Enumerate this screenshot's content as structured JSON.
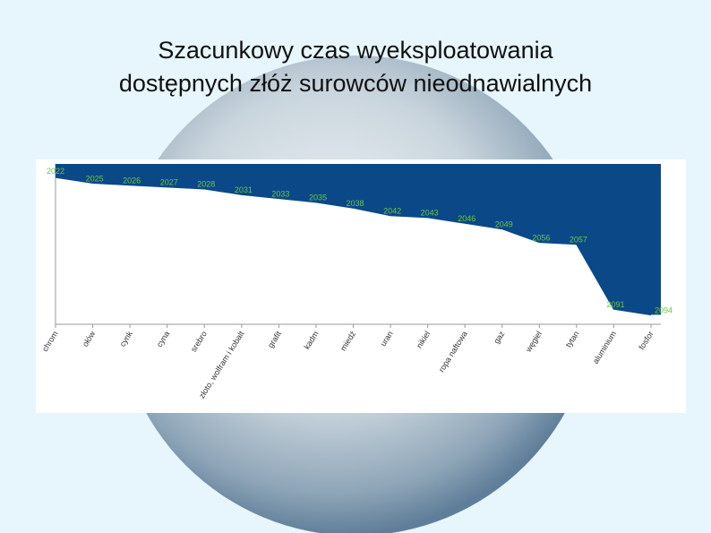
{
  "chart_data": {
    "type": "area",
    "title": [
      "Szacunkowy czas wyeksploatowania",
      "dostępnych złóż surowców nieodnawialnych"
    ],
    "categories": [
      "chrom",
      "ołów",
      "cynk",
      "cyna",
      "srebro",
      "złoto, wolfram i kobalt",
      "grafit",
      "kadm",
      "miedź",
      "uran",
      "nikiel",
      "ropa naftowa",
      "gaz",
      "węgiel",
      "tytan",
      "aluminium",
      "fosfor"
    ],
    "values": [
      2022,
      2025,
      2026,
      2027,
      2028,
      2031,
      2033,
      2035,
      2038,
      2042,
      2043,
      2046,
      2049,
      2056,
      2057,
      2091,
      2094
    ],
    "color": "#0a4888",
    "label_color": "#6cc644",
    "ylim": [
      2015,
      2099
    ],
    "y_reversed": true
  }
}
